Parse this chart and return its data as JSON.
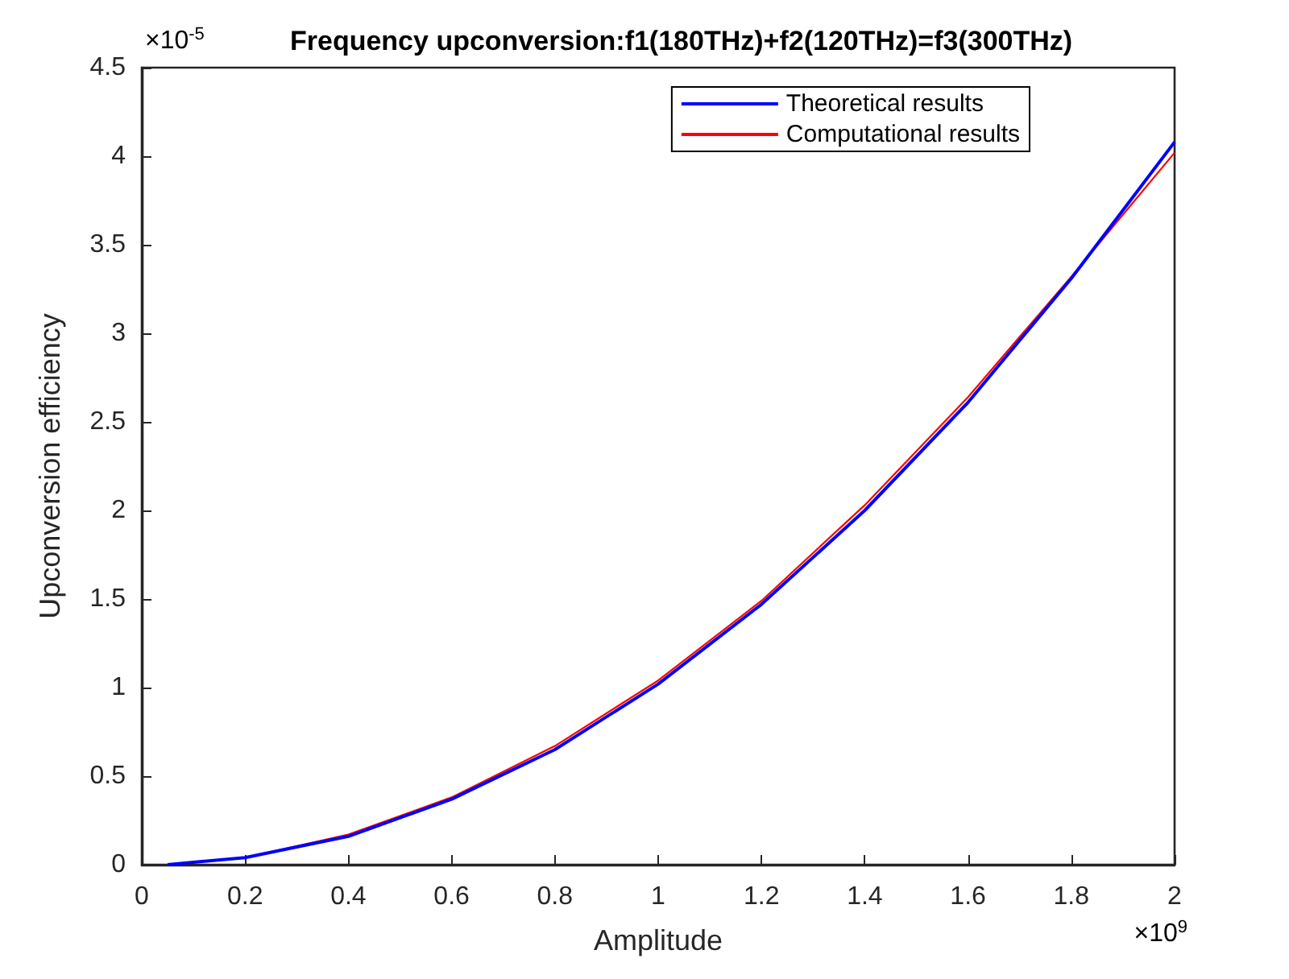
{
  "chart_data": {
    "type": "line",
    "title": "Frequency upconversion:f1(180THz)+f2(120THz)=f3(300THz)",
    "xlabel": "Amplitude",
    "ylabel": "Upconversion efficiency",
    "annotations": [
      "×10$^{9}$",
      "×10$^{-5}$"
    ],
    "x": [
      0.05,
      0.2,
      0.4,
      0.6,
      0.8,
      1.0,
      1.2,
      1.4,
      1.6,
      1.8,
      2.0
    ],
    "series": [
      {
        "name": "Theoretical results",
        "color": "#0000ff",
        "values": [
          0,
          0.04,
          0.16,
          0.37,
          0.65,
          1.02,
          1.47,
          2.0,
          2.61,
          3.31,
          4.08
        ]
      },
      {
        "name": "Computational results",
        "color": "#ff0000",
        "values": [
          0,
          0.04,
          0.17,
          0.38,
          0.67,
          1.04,
          1.49,
          2.03,
          2.64,
          3.32,
          4.02
        ]
      }
    ],
    "xlim": [
      0,
      2
    ],
    "xticks": [
      0,
      0.2,
      0.4,
      0.6,
      0.8,
      1,
      1.2,
      1.4,
      1.6,
      1.8,
      2
    ],
    "ylim": [
      0,
      4.5
    ],
    "yticks": [
      0,
      0.5,
      1,
      1.5,
      2,
      2.5,
      3,
      3.5,
      4,
      4.5
    ],
    "grid": false,
    "legend": "top right",
    "marker": "none",
    "line_style": "solid"
  }
}
